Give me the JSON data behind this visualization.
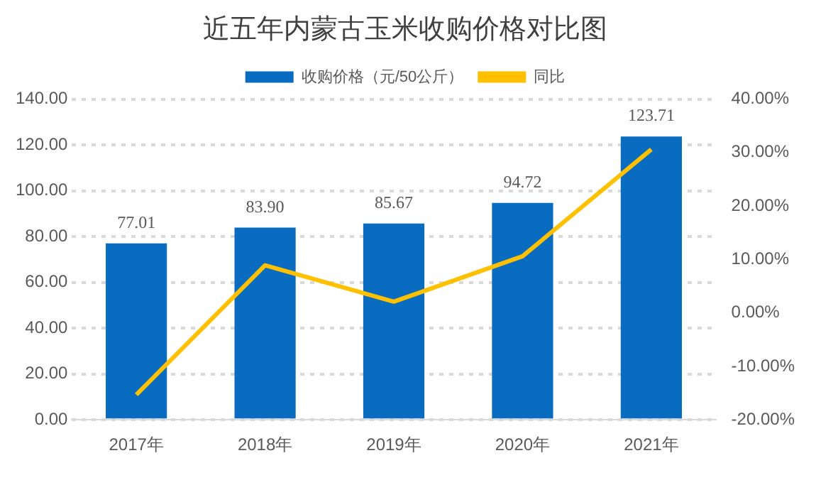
{
  "chart_data": {
    "type": "bar",
    "title": "近五年内蒙古玉米收购价格对比图",
    "categories": [
      "2017年",
      "2018年",
      "2019年",
      "2020年",
      "2021年"
    ],
    "series": [
      {
        "name": "收购价格（元/50公斤）",
        "color": "#0a6cc0",
        "values": [
          77.01,
          83.9,
          85.67,
          94.72,
          123.71
        ],
        "value_labels": [
          "77.01",
          "83.90",
          "85.67",
          "94.72",
          "123.71"
        ]
      },
      {
        "name": "同比",
        "type": "line",
        "axis": "y2",
        "color": "#ffc000",
        "values": [
          -15.3,
          8.9,
          2.1,
          10.6,
          30.6
        ]
      }
    ],
    "ylim": [
      0,
      140
    ],
    "yticks": [
      {
        "value": 0,
        "label": "0.00"
      },
      {
        "value": 20,
        "label": "20.00"
      },
      {
        "value": 40,
        "label": "40.00"
      },
      {
        "value": 60,
        "label": "60.00"
      },
      {
        "value": 80,
        "label": "80.00"
      },
      {
        "value": 100,
        "label": "100.00"
      },
      {
        "value": 120,
        "label": "120.00"
      },
      {
        "value": 140,
        "label": "140.00"
      }
    ],
    "y2lim": [
      -20,
      40
    ],
    "y2ticks": [
      {
        "value": -20,
        "label": "-20.00%"
      },
      {
        "value": -10,
        "label": "-10.00%"
      },
      {
        "value": 0,
        "label": "0.00%"
      },
      {
        "value": 10,
        "label": "10.00%"
      },
      {
        "value": 20,
        "label": "20.00%"
      },
      {
        "value": 30,
        "label": "30.00%"
      },
      {
        "value": 40,
        "label": "40.00%"
      }
    ],
    "grid": "y",
    "legend": "top",
    "marker": "none",
    "line_style": "solid"
  }
}
